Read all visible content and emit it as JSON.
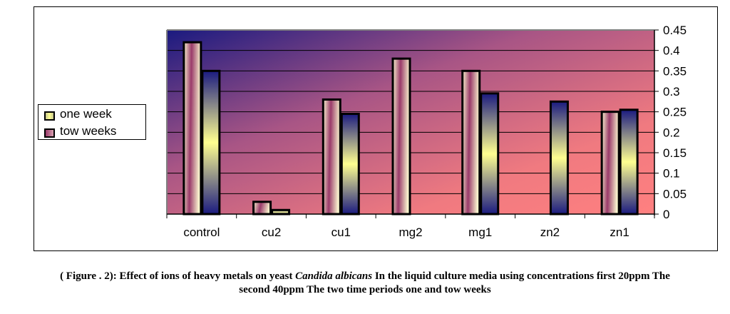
{
  "chart_data": {
    "type": "bar",
    "categories": [
      "control",
      "cu2",
      "cu1",
      "mg2",
      "mg1",
      "zn2",
      "zn1"
    ],
    "series": [
      {
        "name": "one week",
        "values": [
          0.42,
          0.03,
          0.28,
          0.38,
          0.35,
          0,
          0.25
        ]
      },
      {
        "name": "tow weeks",
        "values": [
          0.35,
          0.01,
          0.245,
          0,
          0.295,
          0.275,
          0.255
        ]
      }
    ],
    "title": "",
    "xlabel": "",
    "ylabel": "",
    "ylim": [
      0,
      0.45
    ],
    "yticks": [
      "0",
      "0.05",
      "0.1",
      "0.15",
      "0.2",
      "0.25",
      "0.3",
      "0.35",
      "0.4",
      "0.45"
    ],
    "y_axis_position": "right",
    "grid": true,
    "legend_position": "left",
    "legend_labels": [
      "one week",
      "tow weeks"
    ]
  },
  "caption": {
    "part1": "( Figure . 2): Effect of ions of heavy metals on yeast ",
    "species": "Candida albicans",
    "part2": " In the liquid culture media using concentrations first 20ppm The",
    "line2": "second 40ppm The two time periods one and tow weeks"
  },
  "colors": {
    "bg_top_left": "#1a1a80",
    "bg_mid": "#a85585",
    "bg_bottom_right": "#ff8080",
    "bar_a_light": "#fbf7d0",
    "bar_a_dark": "#9a3a6a",
    "bar_b_dark": "#1a1a80",
    "bar_b_light": "#ffff90"
  }
}
